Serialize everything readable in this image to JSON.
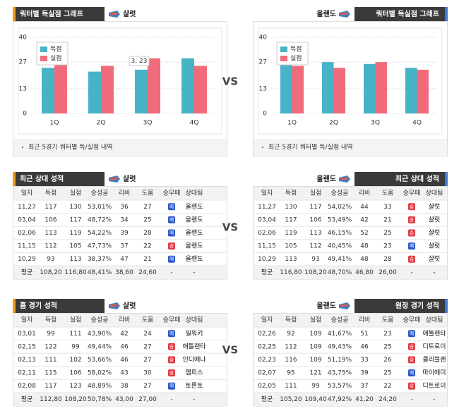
{
  "vs": "VS",
  "result_colors": {
    "승": "#e23b44",
    "패": "#2b58c5"
  },
  "chart_data": [
    {
      "type": "bar",
      "title": "쿼터별 득실점 그래프",
      "team": "샬럿",
      "categories": [
        "1Q",
        "2Q",
        "3Q",
        "4Q"
      ],
      "series": [
        {
          "name": "득점",
          "color": "#47b3c6",
          "values": [
            24,
            22,
            23,
            29
          ]
        },
        {
          "name": "실점",
          "color": "#f06b7b",
          "values": [
            28,
            25,
            29,
            25
          ]
        }
      ],
      "ylim": [
        0,
        40
      ],
      "yticks": [
        0,
        13,
        27,
        40
      ],
      "grid": true,
      "annotation": "3, 23",
      "note": "최근 5경기 쿼터별 득/실점 내역"
    },
    {
      "type": "bar",
      "title": "쿼터별 득실점 그래프",
      "team": "올랜도",
      "categories": [
        "1Q",
        "2Q",
        "3Q",
        "4Q"
      ],
      "series": [
        {
          "name": "득점",
          "color": "#47b3c6",
          "values": [
            28,
            27,
            26,
            24
          ]
        },
        {
          "name": "실점",
          "color": "#f06b7b",
          "values": [
            25,
            24,
            27,
            23
          ]
        }
      ],
      "ylim": [
        0,
        40
      ],
      "yticks": [
        0,
        13,
        27,
        40
      ],
      "grid": true,
      "note": "최근 5경기 쿼터별 득/실점 내역"
    }
  ],
  "tables": [
    {
      "title": "최근 상대 성적",
      "team": "샬럿",
      "columns": [
        "일자",
        "득점",
        "실점",
        "승성공",
        "리바",
        "도움",
        "승무패",
        "상대팀"
      ],
      "rows": [
        [
          "11,27",
          "117",
          "130",
          "53,01%",
          "36",
          "27",
          "패",
          "올랜도"
        ],
        [
          "03,04",
          "106",
          "117",
          "48,72%",
          "34",
          "25",
          "패",
          "올랜도"
        ],
        [
          "02,06",
          "113",
          "119",
          "54,22%",
          "39",
          "28",
          "패",
          "올랜도"
        ],
        [
          "11,15",
          "112",
          "105",
          "47,73%",
          "37",
          "22",
          "승",
          "올랜도"
        ],
        [
          "10,29",
          "93",
          "113",
          "38,37%",
          "47",
          "21",
          "패",
          "올랜도"
        ],
        [
          "평균",
          "108,20",
          "116,80",
          "48,41%",
          "38,60",
          "24,60",
          "-",
          "-"
        ]
      ]
    },
    {
      "title": "최근 상대 성적",
      "team": "올랜도",
      "columns": [
        "일자",
        "득점",
        "실점",
        "승성공",
        "리바",
        "도움",
        "승무패",
        "상대팀"
      ],
      "rows": [
        [
          "11,27",
          "130",
          "117",
          "54,02%",
          "44",
          "33",
          "승",
          "샬럿"
        ],
        [
          "03,04",
          "117",
          "106",
          "53,49%",
          "42",
          "21",
          "승",
          "샬럿"
        ],
        [
          "02,06",
          "119",
          "113",
          "46,15%",
          "52",
          "25",
          "승",
          "샬럿"
        ],
        [
          "11,15",
          "105",
          "112",
          "40,45%",
          "48",
          "23",
          "패",
          "샬럿"
        ],
        [
          "10,29",
          "113",
          "93",
          "49,41%",
          "48",
          "28",
          "승",
          "샬럿"
        ],
        [
          "평균",
          "116,80",
          "108,20",
          "48,70%",
          "46,80",
          "26,00",
          "-",
          "-"
        ]
      ]
    },
    {
      "title": "홈 경기 성적",
      "team": "샬럿",
      "columns": [
        "일자",
        "득점",
        "실점",
        "승성공",
        "리바",
        "도움",
        "승무패",
        "상대팀"
      ],
      "rows": [
        [
          "03,01",
          "99",
          "111",
          "43,90%",
          "42",
          "24",
          "패",
          "밀워키"
        ],
        [
          "02,15",
          "122",
          "99",
          "49,44%",
          "46",
          "27",
          "승",
          "애틀랜타"
        ],
        [
          "02,13",
          "111",
          "102",
          "53,66%",
          "46",
          "27",
          "승",
          "인디애나"
        ],
        [
          "02,11",
          "115",
          "106",
          "58,02%",
          "43",
          "30",
          "승",
          "멤피스"
        ],
        [
          "02,08",
          "117",
          "123",
          "48,89%",
          "38",
          "27",
          "패",
          "토론토"
        ],
        [
          "평균",
          "112,80",
          "108,20",
          "50,78%",
          "43,00",
          "27,00",
          "-",
          "-"
        ]
      ]
    },
    {
      "title": "원정 경기 성적",
      "team": "올랜도",
      "columns": [
        "일자",
        "득점",
        "실점",
        "승성공",
        "리바",
        "도움",
        "승무패",
        "상대팀"
      ],
      "rows": [
        [
          "02,26",
          "92",
          "109",
          "41,67%",
          "51",
          "23",
          "패",
          "애틀랜타"
        ],
        [
          "02,25",
          "112",
          "109",
          "49,43%",
          "46",
          "25",
          "승",
          "디트로이"
        ],
        [
          "02,23",
          "116",
          "109",
          "51,19%",
          "33",
          "26",
          "승",
          "클리블랜"
        ],
        [
          "02,07",
          "95",
          "121",
          "43,75%",
          "39",
          "25",
          "패",
          "마이애미"
        ],
        [
          "02,05",
          "111",
          "99",
          "53,57%",
          "37",
          "22",
          "승",
          "디트로이"
        ],
        [
          "평균",
          "105,20",
          "109,40",
          "47,92%",
          "41,20",
          "24,20",
          "-",
          "-"
        ]
      ]
    }
  ]
}
